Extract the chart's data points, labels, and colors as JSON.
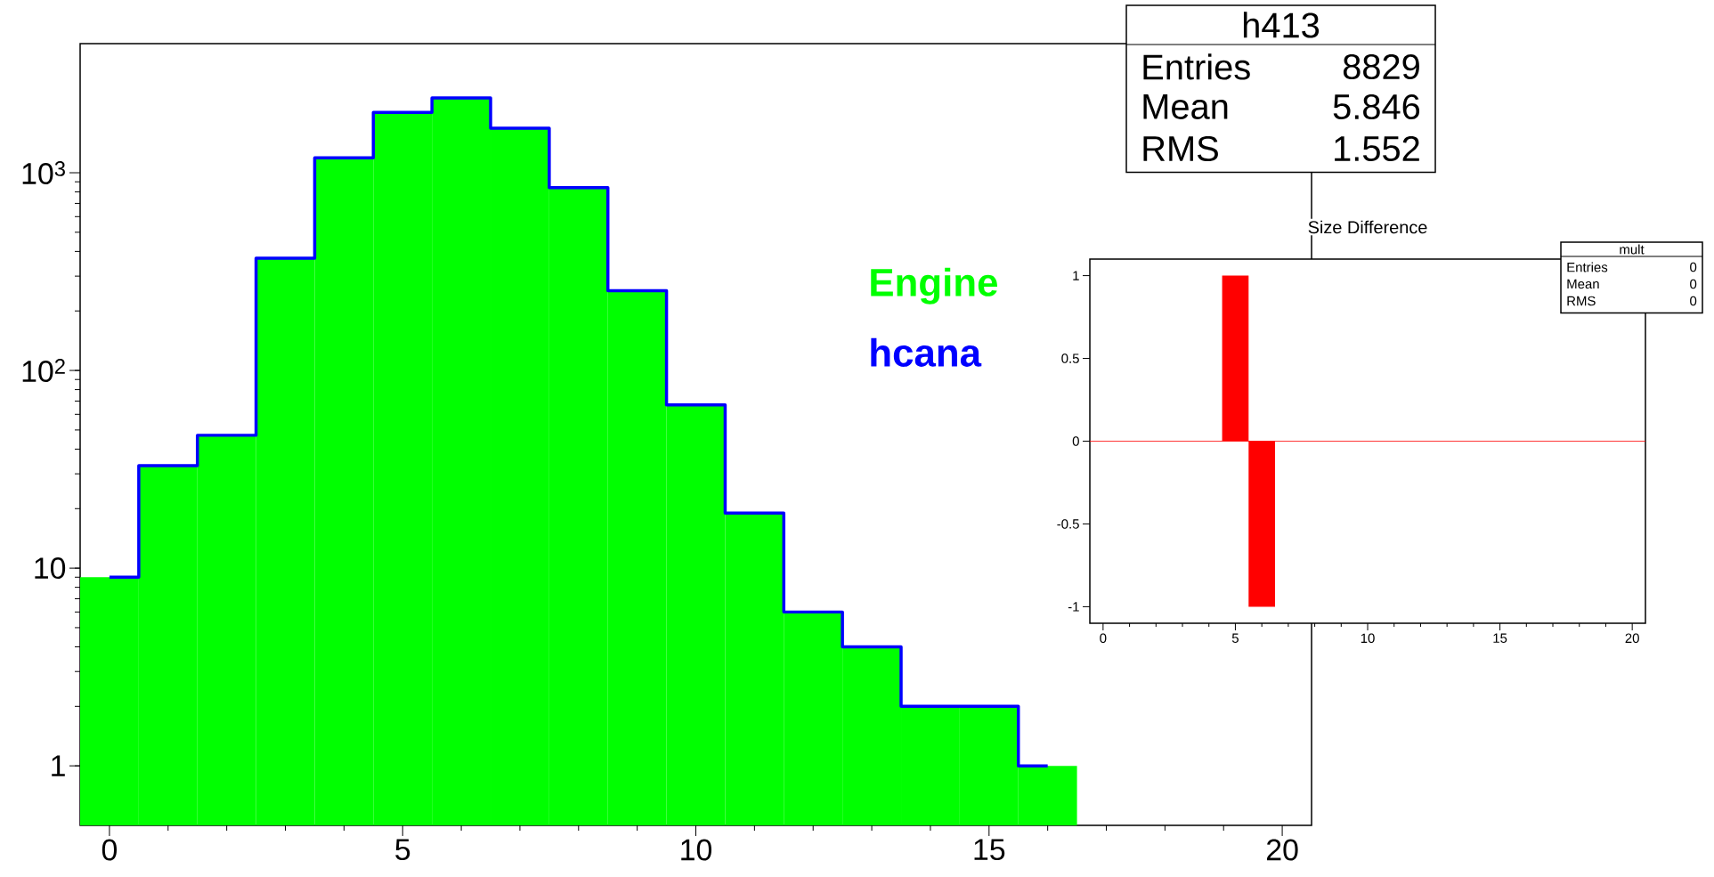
{
  "chart_data": [
    {
      "type": "histogram",
      "bins": [
        -0.5,
        0.5,
        1.5,
        2.5,
        3.5,
        4.5,
        5.5,
        6.5,
        7.5,
        8.5,
        9.5,
        10.5,
        11.5,
        12.5,
        13.5,
        14.5,
        15.5,
        16.5,
        17.5,
        18.5,
        19.5,
        20.5
      ],
      "series": [
        {
          "name": "Engine",
          "color": "#00ff00",
          "values": [
            9,
            33,
            47,
            370,
            1190,
            2020,
            2390,
            1680,
            840,
            253,
            67,
            19,
            6,
            4,
            2,
            2,
            1,
            null,
            null,
            null,
            null
          ]
        },
        {
          "name": "hcana",
          "type": "step",
          "color": "#0000ff",
          "x": [
            0,
            1,
            2,
            3,
            4,
            5,
            6,
            7,
            8,
            9,
            10,
            11,
            12,
            13,
            14,
            15,
            16
          ],
          "values": [
            9,
            33,
            47,
            370,
            1190,
            2020,
            2390,
            1680,
            840,
            253,
            67,
            19,
            6,
            4,
            2,
            2,
            1
          ]
        }
      ],
      "log": true,
      "xlim": [
        -0.5,
        20.5
      ],
      "ylim": [
        0.5,
        4500
      ],
      "xticks": [
        0,
        5,
        10,
        15,
        20
      ],
      "yticks": [
        1,
        10,
        {
          "value": 100,
          "label": "10$^{2}$"
        },
        {
          "value": 1000,
          "label": "10$^{3}$"
        }
      ],
      "grid": false,
      "legend": "right",
      "annotations": [
        "h413",
        "Entries",
        "8829",
        "Mean",
        "5.846",
        "RMS",
        "1.552"
      ]
    },
    {
      "type": "histogram",
      "title": "Size Difference",
      "bins": [
        -0.5,
        0.5,
        1.5,
        2.5,
        3.5,
        4.5,
        5.5,
        6.5,
        7.5,
        8.5,
        9.5,
        10.5,
        11.5,
        12.5,
        13.5,
        14.5,
        15.5,
        16.5,
        17.5,
        18.5,
        19.5,
        20.5
      ],
      "values": [
        0,
        0,
        0,
        0,
        0,
        1,
        -1,
        0,
        0,
        0,
        0,
        0,
        0,
        0,
        0,
        0,
        0,
        0,
        0,
        0,
        0
      ],
      "color": "#ff0000",
      "xlim": [
        -0.5,
        20.5
      ],
      "ylim": [
        -1.1,
        1.1
      ],
      "xticks": [
        0,
        5,
        10,
        15,
        20
      ],
      "yticks": [
        -1,
        -0.5,
        0,
        0.5,
        1
      ],
      "grid": false,
      "ref_lines": [
        {
          "axis": "y",
          "value": 0,
          "color": "#ff0000"
        }
      ],
      "annotations": [
        "mult",
        "Entries",
        "0",
        "Mean",
        "0",
        "RMS",
        "0"
      ]
    }
  ]
}
